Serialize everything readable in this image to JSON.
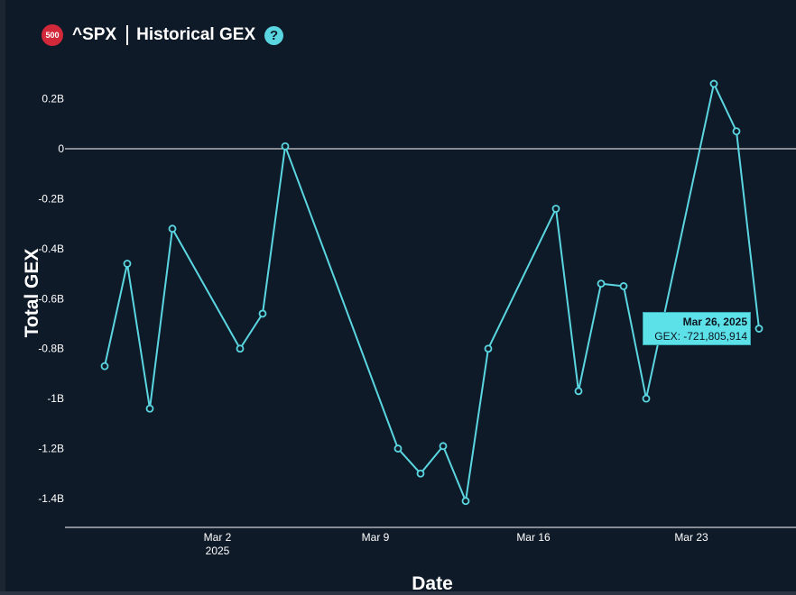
{
  "header": {
    "badge": "500",
    "ticker": "^SPX",
    "title": "Historical GEX",
    "help_icon": "?"
  },
  "tooltip": {
    "date": "Mar 26, 2025",
    "value_label": "GEX: -721,805,914"
  },
  "colors": {
    "background": "#0f1a28",
    "line": "#5ad6e0",
    "badge": "#d1283a",
    "tooltip": "#5de1e8"
  },
  "chart_data": {
    "type": "line",
    "title": "",
    "xlabel": "Date",
    "ylabel": "Total GEX",
    "ylim": [
      -1.5,
      0.3
    ],
    "y_unit": "billions",
    "grid": false,
    "x_ticks": [
      {
        "date": "2025-03-02",
        "label": "Mar 2",
        "sublabel": "2025"
      },
      {
        "date": "2025-03-09",
        "label": "Mar 9"
      },
      {
        "date": "2025-03-16",
        "label": "Mar 16"
      },
      {
        "date": "2025-03-23",
        "label": "Mar 23"
      }
    ],
    "y_ticks": [
      {
        "value": 0.2,
        "label": "0.2B"
      },
      {
        "value": 0,
        "label": "0"
      },
      {
        "value": -0.2,
        "label": "-0.2B"
      },
      {
        "value": -0.4,
        "label": "-0.4B"
      },
      {
        "value": -0.6,
        "label": "-0.6B"
      },
      {
        "value": -0.8,
        "label": "-0.8B"
      },
      {
        "value": -1.0,
        "label": "-1B"
      },
      {
        "value": -1.2,
        "label": "-1.2B"
      },
      {
        "value": -1.4,
        "label": "-1.4B"
      }
    ],
    "series": [
      {
        "points": [
          {
            "x": "2025-02-25",
            "y": -0.87
          },
          {
            "x": "2025-02-26",
            "y": -0.46
          },
          {
            "x": "2025-02-27",
            "y": -1.04
          },
          {
            "x": "2025-02-28",
            "y": -0.32
          },
          {
            "x": "2025-03-03",
            "y": -0.8
          },
          {
            "x": "2025-03-04",
            "y": -0.66
          },
          {
            "x": "2025-03-05",
            "y": 0.01
          },
          {
            "x": "2025-03-10",
            "y": -1.2
          },
          {
            "x": "2025-03-11",
            "y": -1.3
          },
          {
            "x": "2025-03-12",
            "y": -1.19
          },
          {
            "x": "2025-03-13",
            "y": -1.41
          },
          {
            "x": "2025-03-14",
            "y": -0.8
          },
          {
            "x": "2025-03-17",
            "y": -0.24
          },
          {
            "x": "2025-03-18",
            "y": -0.97
          },
          {
            "x": "2025-03-19",
            "y": -0.54
          },
          {
            "x": "2025-03-20",
            "y": -0.55
          },
          {
            "x": "2025-03-21",
            "y": -1.0
          },
          {
            "x": "2025-03-24",
            "y": 0.26
          },
          {
            "x": "2025-03-25",
            "y": 0.07
          },
          {
            "x": "2025-03-26",
            "y": -0.72
          }
        ]
      }
    ]
  }
}
